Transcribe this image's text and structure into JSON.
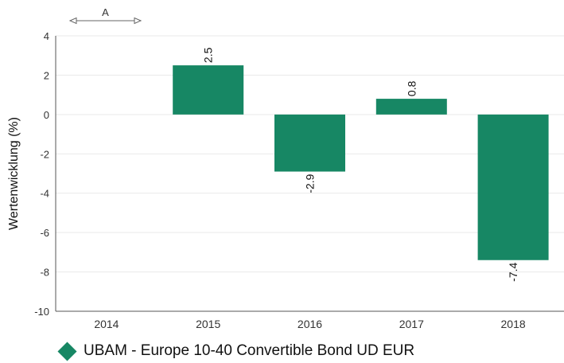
{
  "chart_data": {
    "type": "bar",
    "title": "",
    "xlabel": "",
    "ylabel": "Wertenwicklung (%)",
    "categories": [
      "2014",
      "2015",
      "2016",
      "2017",
      "2018"
    ],
    "series": [
      {
        "name": "UBAM - Europe 10-40 Convertible Bond UD EUR",
        "values": [
          null,
          2.5,
          -2.9,
          0.8,
          -7.4
        ],
        "labels": [
          "",
          "2.5",
          "-2.9",
          "0.8",
          "-7.4"
        ]
      }
    ],
    "ylim": [
      -10,
      4
    ],
    "yticks": [
      4,
      2,
      0,
      -2,
      -4,
      -6,
      -8,
      -10
    ],
    "grid": true,
    "legend_position": "bottom",
    "annotation": "A",
    "colors": {
      "bar": "#178764",
      "grid": "#e9e9e9",
      "axis": "#555555",
      "text": "#333333"
    }
  }
}
